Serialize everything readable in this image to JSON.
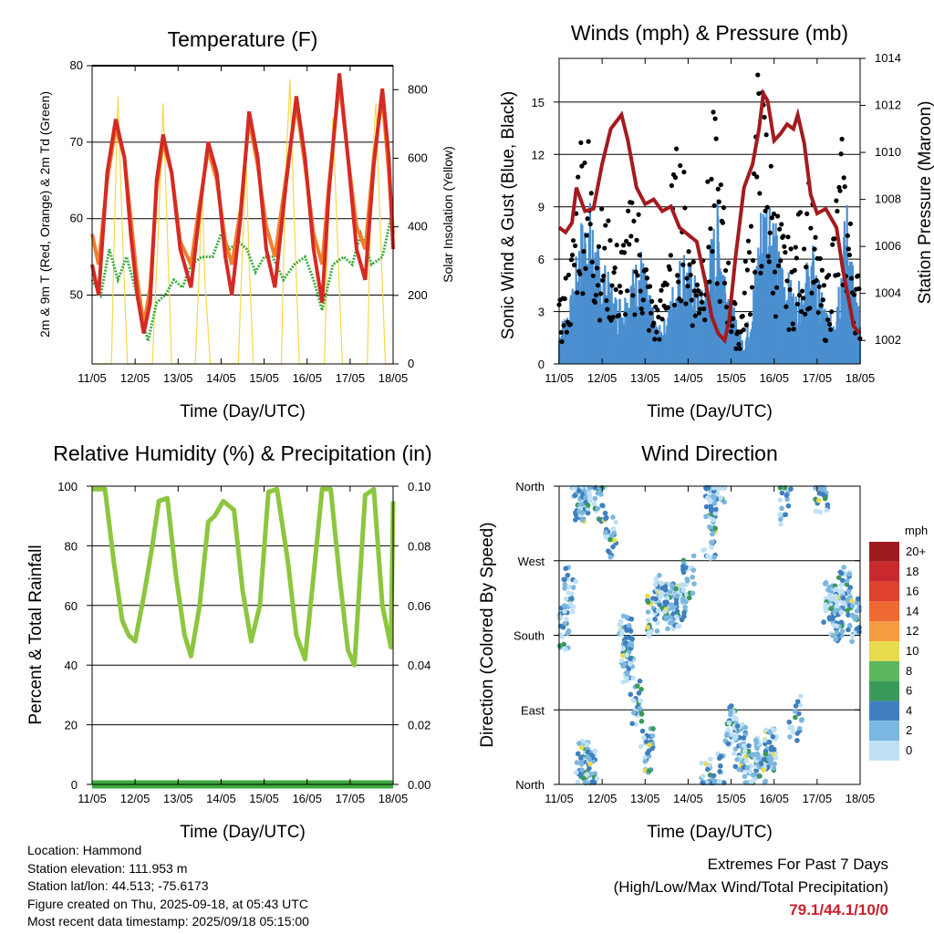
{
  "info": {
    "location": "Location: Hammond",
    "elevation": "Station elevation: 111.953 m",
    "latlon": "Station lat/lon: 44.513; -75.6173",
    "created": "Figure created on Thu, 2025-09-18, at 05:43 UTC",
    "recent": "Most recent data timestamp: 2025/09/18 05:15:00"
  },
  "extremes": {
    "line1": "Extremes For Past 7 Days",
    "line2": "(High/Low/Max Wind/Total Precipitation)",
    "values": "79.1/44.1/10/0",
    "color": "#c8202a"
  },
  "chart_data": [
    {
      "id": "temperature",
      "type": "line",
      "title": "Temperature (F)",
      "xlabel": "Time (Day/UTC)",
      "ylabel": "2m & 9m T (Red, Orange) & 2m Td (Green)",
      "ylabel_right": "Solar Insolation (Yellow)",
      "x_ticks": [
        "11/05",
        "12/05",
        "13/05",
        "14/05",
        "15/05",
        "16/05",
        "17/05",
        "18/05"
      ],
      "xlim": [
        0,
        7
      ],
      "ylim": [
        41,
        80
      ],
      "yticks": [
        50,
        60,
        70,
        80
      ],
      "ylim_right": [
        0,
        870
      ],
      "yticks_right": [
        0,
        200,
        400,
        600,
        800
      ],
      "colors": {
        "t2m": "#d42a24",
        "t9m": "#f07e2c",
        "td2m": "#3dab3f",
        "solar": "#f6d84a"
      },
      "series": [
        {
          "key": "t2m",
          "name": "2m T",
          "x": [
            0,
            0.15,
            0.35,
            0.55,
            0.75,
            0.9,
            1.05,
            1.2,
            1.35,
            1.5,
            1.65,
            1.85,
            2.05,
            2.3,
            2.5,
            2.7,
            2.9,
            3.1,
            3.25,
            3.45,
            3.65,
            3.85,
            4.05,
            4.25,
            4.5,
            4.75,
            4.95,
            5.15,
            5.35,
            5.5,
            5.75,
            5.95,
            6.15,
            6.35,
            6.55,
            6.75,
            6.9,
            7.0
          ],
          "y": [
            54,
            50,
            66,
            73,
            68,
            58,
            50,
            45,
            49,
            65,
            71,
            66,
            56,
            51,
            61,
            70,
            66,
            55,
            50,
            60,
            74,
            68,
            56,
            51,
            64,
            76,
            68,
            56,
            49,
            63,
            79,
            68,
            56,
            52,
            67,
            77,
            68,
            56
          ]
        },
        {
          "key": "t9m",
          "name": "9m T",
          "x": [
            0,
            0.15,
            0.35,
            0.55,
            0.75,
            0.9,
            1.05,
            1.2,
            1.35,
            1.5,
            1.65,
            1.85,
            2.05,
            2.3,
            2.5,
            2.7,
            2.9,
            3.1,
            3.25,
            3.45,
            3.65,
            3.85,
            4.05,
            4.25,
            4.5,
            4.75,
            4.95,
            5.15,
            5.35,
            5.5,
            5.75,
            5.95,
            6.15,
            6.35,
            6.55,
            6.75,
            6.9,
            7.0
          ],
          "y": [
            58,
            54,
            65,
            72,
            68,
            60,
            52,
            46,
            51,
            64,
            70,
            66,
            57,
            54,
            62,
            69,
            65,
            57,
            54,
            61,
            73,
            67,
            59,
            55,
            65,
            75,
            67,
            58,
            54,
            64,
            78,
            68,
            59,
            56,
            68,
            76,
            66,
            58
          ]
        },
        {
          "key": "td2m",
          "name": "2m Td",
          "x": [
            0,
            0.2,
            0.4,
            0.6,
            0.8,
            1.0,
            1.15,
            1.3,
            1.5,
            1.7,
            1.9,
            2.1,
            2.3,
            2.55,
            2.8,
            3.0,
            3.2,
            3.4,
            3.6,
            3.8,
            4.0,
            4.2,
            4.45,
            4.7,
            4.95,
            5.15,
            5.35,
            5.6,
            5.85,
            6.05,
            6.25,
            6.5,
            6.75,
            6.95,
            7.0
          ],
          "y": [
            52,
            50,
            56,
            52,
            55,
            51,
            47,
            44,
            49,
            50,
            52,
            51,
            54,
            55,
            55,
            58,
            56,
            57,
            56,
            53,
            55,
            55,
            52,
            54,
            55,
            52,
            48,
            54,
            55,
            54,
            58,
            54,
            55,
            60,
            57
          ]
        },
        {
          "key": "solar",
          "name": "Solar",
          "x": [
            0,
            0.45,
            0.52,
            0.6,
            0.7,
            0.82,
            1.4,
            1.55,
            1.65,
            1.75,
            1.85,
            2.4,
            2.5,
            2.55,
            2.62,
            2.75,
            3.4,
            3.5,
            3.58,
            3.65,
            3.75,
            4.4,
            4.5,
            4.6,
            4.7,
            4.82,
            5.4,
            5.5,
            5.6,
            5.7,
            5.82,
            6.4,
            6.5,
            6.6,
            6.7,
            6.82,
            7.0
          ],
          "y": [
            0,
            0,
            400,
            780,
            400,
            0,
            0,
            420,
            760,
            380,
            0,
            0,
            300,
            540,
            250,
            0,
            0,
            350,
            600,
            300,
            0,
            0,
            550,
            830,
            420,
            0,
            0,
            450,
            720,
            380,
            0,
            0,
            560,
            760,
            400,
            0,
            0
          ]
        }
      ]
    },
    {
      "id": "winds",
      "type": "scatter",
      "title": "Winds (mph) & Pressure (mb)",
      "xlabel": "Time (Day/UTC)",
      "ylabel": "Sonic Wind & Gust (Blue, Black)",
      "ylabel_right": "Station Pressure (Maroon)",
      "x_ticks": [
        "11/05",
        "12/05",
        "13/05",
        "14/05",
        "15/05",
        "16/05",
        "17/05",
        "18/05"
      ],
      "xlim": [
        0,
        7
      ],
      "ylim": [
        0,
        17.5
      ],
      "yticks": [
        0,
        3,
        6,
        9,
        12,
        15
      ],
      "ylim_right": [
        1001,
        1014
      ],
      "yticks_right": [
        1002,
        1004,
        1006,
        1008,
        1010,
        1012,
        1014
      ],
      "colors": {
        "wind": "#4a8fcf",
        "gust": "#000000",
        "pressure": "#a31b1f"
      },
      "wind": {
        "x": [
          0,
          0.3,
          0.5,
          0.7,
          0.9,
          1.1,
          1.3,
          1.5,
          1.7,
          1.9,
          2.1,
          2.3,
          2.5,
          2.7,
          2.9,
          3.1,
          3.3,
          3.5,
          3.7,
          3.9,
          4.1,
          4.3,
          4.5,
          4.7,
          4.9,
          5.1,
          5.3,
          5.5,
          5.7,
          5.9,
          6.1,
          6.3,
          6.5,
          6.7,
          6.9,
          7.0
        ],
        "y": [
          1.5,
          3,
          6,
          7,
          5,
          4,
          3,
          3,
          4,
          5,
          3,
          1.5,
          2,
          4,
          5,
          4,
          3,
          5,
          7,
          4,
          2,
          1,
          3,
          7,
          8,
          5,
          4,
          3,
          4,
          5,
          3,
          2,
          4,
          7,
          3,
          2
        ]
      },
      "gust": {
        "x": [
          0,
          0.3,
          0.45,
          0.6,
          0.8,
          1.0,
          1.2,
          1.4,
          1.6,
          1.8,
          2.0,
          2.2,
          2.4,
          2.6,
          2.8,
          3.0,
          3.2,
          3.4,
          3.6,
          3.8,
          4.0,
          4.2,
          4.4,
          4.6,
          4.8,
          5.0,
          5.2,
          5.4,
          5.6,
          5.8,
          6.0,
          6.2,
          6.4,
          6.6,
          6.8,
          7.0
        ],
        "y": [
          3,
          6,
          12,
          14,
          9,
          8,
          7,
          6,
          8,
          9,
          6,
          3,
          4,
          9,
          12,
          8,
          5,
          8,
          13,
          9,
          4,
          2,
          7,
          15,
          14,
          9,
          7,
          6,
          8,
          10,
          6,
          4,
          8,
          12,
          7,
          4
        ]
      },
      "pressure": {
        "x": [
          0,
          0.15,
          0.3,
          0.4,
          0.5,
          0.6,
          0.8,
          1.0,
          1.2,
          1.45,
          1.6,
          1.8,
          2.0,
          2.2,
          2.4,
          2.6,
          2.8,
          3.0,
          3.2,
          3.4,
          3.55,
          3.7,
          3.85,
          3.95,
          4.1,
          4.3,
          4.5,
          4.65,
          4.75,
          4.85,
          5.0,
          5.15,
          5.3,
          5.45,
          5.55,
          5.7,
          5.85,
          6.0,
          6.2,
          6.45,
          6.6,
          6.75,
          6.85,
          7.0
        ],
        "y": [
          1006.8,
          1006.6,
          1007.0,
          1008.5,
          1008.0,
          1007.5,
          1007.6,
          1009.5,
          1011.0,
          1011.6,
          1010.5,
          1008.5,
          1007.8,
          1008.0,
          1007.5,
          1007.7,
          1006.8,
          1006.5,
          1006.2,
          1004.5,
          1003.0,
          1002.3,
          1002.0,
          1002.8,
          1005.5,
          1008.5,
          1009.5,
          1011.0,
          1012.5,
          1012.2,
          1010.5,
          1010.8,
          1011.2,
          1011.0,
          1011.6,
          1010.4,
          1008.2,
          1007.4,
          1007.6,
          1006.8,
          1005.0,
          1003.6,
          1002.6,
          1002.3
        ]
      }
    },
    {
      "id": "humidity",
      "type": "line",
      "title": "Relative Humidity (%) & Precipitation (in)",
      "xlabel": "Time (Day/UTC)",
      "ylabel": "Percent & Total Rainfall",
      "x_ticks": [
        "11/05",
        "12/05",
        "13/05",
        "14/05",
        "15/05",
        "16/05",
        "17/05",
        "18/05"
      ],
      "xlim": [
        0,
        7
      ],
      "ylim": [
        0,
        100
      ],
      "yticks": [
        0,
        20,
        40,
        60,
        80,
        100
      ],
      "ylim_right": [
        0,
        0.1
      ],
      "yticks_right": [
        "0.00",
        "0.02",
        "0.04",
        "0.06",
        "0.08",
        "0.10"
      ],
      "colors": {
        "rh": "#8cc63f",
        "precip": "#3dab3f"
      },
      "rh": {
        "x": [
          0,
          0.1,
          0.3,
          0.5,
          0.7,
          0.85,
          1.0,
          1.2,
          1.4,
          1.55,
          1.75,
          1.95,
          2.15,
          2.3,
          2.5,
          2.7,
          2.85,
          3.05,
          3.3,
          3.5,
          3.7,
          3.9,
          4.1,
          4.3,
          4.55,
          4.75,
          4.95,
          5.15,
          5.35,
          5.55,
          5.75,
          5.95,
          6.1,
          6.35,
          6.55,
          6.75,
          6.95,
          7.0
        ],
        "y": [
          99,
          99,
          99,
          75,
          55,
          50,
          48,
          63,
          80,
          95,
          96,
          70,
          50,
          43,
          60,
          88,
          90,
          95,
          92,
          65,
          48,
          60,
          98,
          99,
          75,
          50,
          42,
          70,
          99,
          99,
          70,
          45,
          40,
          97,
          99,
          60,
          46,
          95
        ]
      },
      "precip": {
        "x": [
          0,
          7
        ],
        "y": [
          0,
          0
        ]
      }
    },
    {
      "id": "wind-direction",
      "type": "scatter",
      "title": "Wind Direction",
      "xlabel": "Time (Day/UTC)",
      "ylabel": "Direction (Colored By Speed)",
      "x_ticks": [
        "11/05",
        "12/05",
        "13/05",
        "14/05",
        "15/05",
        "16/05",
        "17/05",
        "18/05"
      ],
      "xlim": [
        0,
        7
      ],
      "ylim": [
        0,
        360
      ],
      "y_ticks": [
        {
          "v": 0,
          "label": "North"
        },
        {
          "v": 90,
          "label": "East"
        },
        {
          "v": 180,
          "label": "South"
        },
        {
          "v": 270,
          "label": "West"
        },
        {
          "v": 360,
          "label": "North"
        }
      ],
      "legend": {
        "title": "mph",
        "labels": [
          "20+",
          "18",
          "16",
          "14",
          "12",
          "10",
          "8",
          "6",
          "4",
          "2",
          "0"
        ],
        "colors": [
          "#9e1b20",
          "#c9282d",
          "#e0412c",
          "#ef6a32",
          "#f59b42",
          "#e8dc4e",
          "#5cb85c",
          "#3a9a5a",
          "#3f7fbf",
          "#7bb7e0",
          "#bfe1f6"
        ]
      },
      "clusters": [
        {
          "x": 0.1,
          "y": 190,
          "n": 5
        },
        {
          "x": 0.25,
          "y": 235,
          "n": 4
        },
        {
          "x": 0.45,
          "y": 345,
          "n": 8
        },
        {
          "x": 0.6,
          "y": 355,
          "n": 6
        },
        {
          "x": 0.55,
          "y": 25,
          "n": 7
        },
        {
          "x": 0.75,
          "y": 15,
          "n": 6
        },
        {
          "x": 0.95,
          "y": 340,
          "n": 4
        },
        {
          "x": 1.2,
          "y": 300,
          "n": 4
        },
        {
          "x": 1.55,
          "y": 180,
          "n": 5
        },
        {
          "x": 1.6,
          "y": 150,
          "n": 7
        },
        {
          "x": 1.8,
          "y": 100,
          "n": 4
        },
        {
          "x": 2.05,
          "y": 40,
          "n": 5
        },
        {
          "x": 2.2,
          "y": 205,
          "n": 4
        },
        {
          "x": 2.35,
          "y": 225,
          "n": 7
        },
        {
          "x": 2.6,
          "y": 215,
          "n": 8
        },
        {
          "x": 2.8,
          "y": 215,
          "n": 6
        },
        {
          "x": 3.0,
          "y": 250,
          "n": 4
        },
        {
          "x": 3.5,
          "y": 300,
          "n": 4
        },
        {
          "x": 3.55,
          "y": 350,
          "n": 8
        },
        {
          "x": 3.7,
          "y": 365,
          "n": 5
        },
        {
          "x": 3.45,
          "y": 5,
          "n": 5
        },
        {
          "x": 3.7,
          "y": 10,
          "n": 4
        },
        {
          "x": 4.0,
          "y": 70,
          "n": 6
        },
        {
          "x": 4.2,
          "y": 45,
          "n": 7
        },
        {
          "x": 4.45,
          "y": 20,
          "n": 5
        },
        {
          "x": 4.7,
          "y": 30,
          "n": 6
        },
        {
          "x": 4.9,
          "y": 40,
          "n": 7
        },
        {
          "x": 5.25,
          "y": 340,
          "n": 3
        },
        {
          "x": 5.5,
          "y": 80,
          "n": 3
        },
        {
          "x": 6.1,
          "y": 355,
          "n": 5
        },
        {
          "x": 6.3,
          "y": 220,
          "n": 7
        },
        {
          "x": 6.45,
          "y": 200,
          "n": 6
        },
        {
          "x": 6.65,
          "y": 235,
          "n": 6
        },
        {
          "x": 6.85,
          "y": 200,
          "n": 5
        }
      ]
    }
  ]
}
